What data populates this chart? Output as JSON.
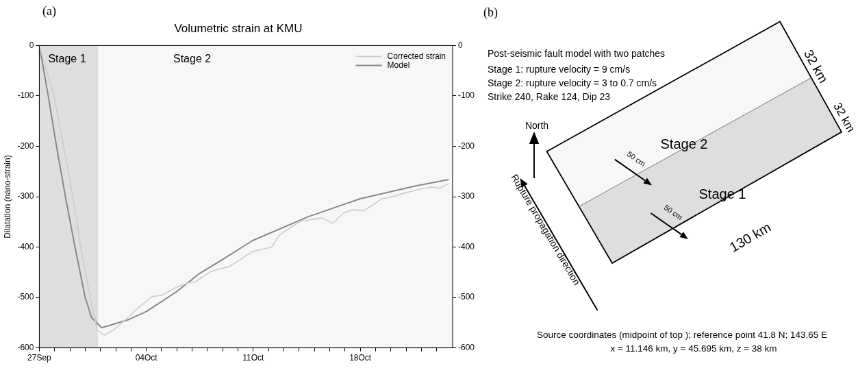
{
  "chart_data": [
    {
      "type": "line",
      "title": "Volumetric strain at KMU",
      "ylabel": "Dilatation (nano-strain)",
      "annotations": [
        "(a)"
      ],
      "xlim": [
        "--09-27",
        "--10-24T01:00"
      ],
      "xticks": [
        {
          "value": "--09-27",
          "label": "27Sep"
        },
        {
          "value": "--09-28",
          "label": null
        },
        {
          "value": "--09-29",
          "label": null
        },
        {
          "value": "--09-30",
          "label": null
        },
        {
          "value": "--10-01",
          "label": null
        },
        {
          "value": "--10-02",
          "label": null
        },
        {
          "value": "--10-03",
          "label": null
        },
        {
          "value": "--10-04",
          "label": "04Oct"
        },
        {
          "value": "--10-05",
          "label": null
        },
        {
          "value": "--10-06",
          "label": null
        },
        {
          "value": "--10-07",
          "label": null
        },
        {
          "value": "--10-08",
          "label": null
        },
        {
          "value": "--10-09",
          "label": null
        },
        {
          "value": "--10-10",
          "label": null
        },
        {
          "value": "--10-11",
          "label": "11Oct"
        },
        {
          "value": "--10-12",
          "label": null
        },
        {
          "value": "--10-13",
          "label": null
        },
        {
          "value": "--10-14",
          "label": null
        },
        {
          "value": "--10-15",
          "label": null
        },
        {
          "value": "--10-16",
          "label": null
        },
        {
          "value": "--10-17",
          "label": null
        },
        {
          "value": "--10-18",
          "label": "18Oct"
        },
        {
          "value": "--10-19",
          "label": null
        },
        {
          "value": "--10-20",
          "label": null
        },
        {
          "value": "--10-21",
          "label": null
        },
        {
          "value": "--10-22",
          "label": null
        },
        {
          "value": "--10-23",
          "label": null
        }
      ],
      "ylim": [
        -600,
        0
      ],
      "yticks": [
        -600,
        -500,
        -400,
        -300,
        -200,
        -100,
        0
      ],
      "y2lim": [
        -600,
        0
      ],
      "y2ticks": [
        -600,
        -500,
        -400,
        -300,
        -200,
        -100,
        0
      ],
      "grid": false,
      "legend": "top right",
      "marker": "none",
      "bands": [
        {
          "axis": "x",
          "from": "--09-27",
          "to": "--09-30T20:00",
          "label": "Stage 1",
          "color": "#dedede"
        },
        {
          "axis": "x",
          "from": "--09-30T20:00",
          "to": "--10-24T01:00",
          "label": "Stage 2",
          "color": "#f7f7f7"
        }
      ],
      "series": [
        {
          "name": "Corrected strain",
          "color": "#cccccc",
          "x": [
            "--09-27",
            "--09-27T23:00",
            "--09-29T05:00",
            "--09-29T17:00",
            "--09-30T08:00",
            "--09-30T19:00",
            "--10-01T06:00",
            "--10-01T21:00",
            "--10-02T20:00",
            "--10-03T11:00",
            "--10-04T09:00",
            "--10-05",
            "--10-05T23:00",
            "--10-06T18:00",
            "--10-07T05:00",
            "--10-08T03:00",
            "--10-08T22:00",
            "--10-09T10:00",
            "--10-10T23:00",
            "--10-12T05:00",
            "--10-12T17:00",
            "--10-14T02:00",
            "--10-15T12:00",
            "--10-16T05:00",
            "--10-16T22:00",
            "--10-17T12:00",
            "--10-18T05:00",
            "--10-18T19:00",
            "--10-19T10:00",
            "--10-20",
            "--10-21",
            "--10-21T22:00",
            "--10-22T17:00",
            "--10-23T05:00",
            "--10-23T19:00"
          ],
          "values": [
            0,
            -100,
            -300,
            -400,
            -500,
            -565,
            -575,
            -564,
            -539,
            -521,
            -498,
            -496,
            -480,
            -471,
            -469,
            -450,
            -442,
            -439,
            -409,
            -400,
            -376,
            -349,
            -342,
            -353,
            -332,
            -326,
            -328,
            -317,
            -304,
            -301,
            -292,
            -285,
            -281,
            -283,
            -274
          ]
        },
        {
          "name": "Model",
          "color": "#888888",
          "x": [
            "--09-27",
            "--09-27T14:00",
            "--09-28T03:00",
            "--09-28T17:00",
            "--09-29T08:00",
            "--09-30",
            "--09-30T10:00",
            "--10-01T02:00",
            "--10-02T20:00",
            "--10-04",
            "--10-05T23:00",
            "--10-07T12:00",
            "--10-08T22:00",
            "--10-10T23:00",
            "--10-14T14:00",
            "--10-18",
            "--10-21T14:00",
            "--10-23T19:00"
          ],
          "values": [
            0,
            -100,
            -200,
            -300,
            -400,
            -500,
            -540,
            -560,
            -544,
            -528,
            -489,
            -452,
            -426,
            -387,
            -340,
            -304,
            -279,
            -266
          ]
        }
      ]
    },
    {
      "type": "other",
      "title": "(b)",
      "annotations": [
        "Post-seismic fault model with two patches",
        "Stage 1: rupture velocity = 9 cm/s",
        "Stage 2: rupture velocity = 3 to 0.7 cm/s",
        "Strike 240, Rake 124, Dip 23",
        "North",
        "Rupture propagation direction",
        "Stage 2",
        "Stage 1",
        "50 cm",
        "50 cm",
        "130 km",
        "32 km",
        "32 km",
        "Source coordinates (midpoint of top ); reference point 41.8 N; 143.65 E",
        "x = 11.146 km, y = 45.695 km, z = 38 km"
      ]
    }
  ]
}
